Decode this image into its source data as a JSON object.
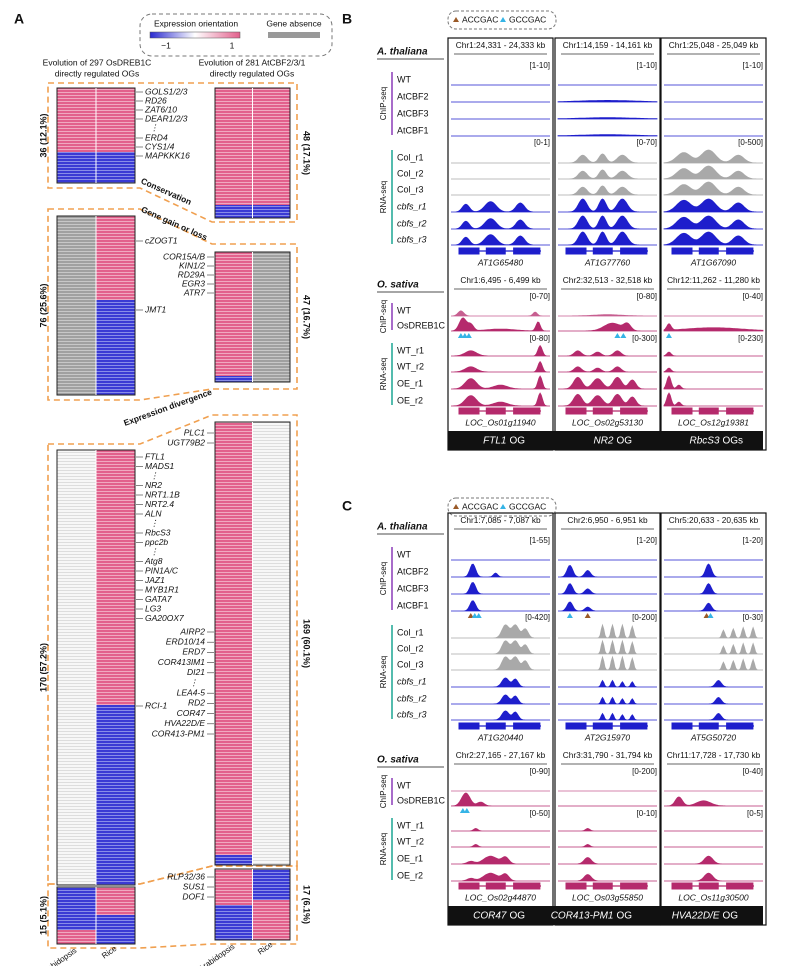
{
  "panel_a": {
    "label": "A",
    "legend": {
      "expression": "Expression orientation",
      "absence": "Gene absence",
      "min": "−1",
      "max": "1"
    },
    "left_title": [
      "Evolution of 297 OsDREB1C",
      "directly regulated OGs"
    ],
    "right_title": [
      "Evolution of 281 AtCBF2/3/1",
      "directly regulated OGs"
    ],
    "groups": [
      {
        "name": "Conservation",
        "left_count": "36 (12.1%)",
        "right_count": "48 (17.1%)",
        "left_genes": [
          "GOLS1/2/3",
          "RD26",
          "ZAT6/10",
          "DEAR1/2/3",
          "⋮",
          "ERD4",
          "CYS1/4",
          "MAPKKK16"
        ],
        "right_genes": []
      },
      {
        "name": "Gene gain or loss",
        "left_count": "76 (25.6%)",
        "right_count": "47 (16.7%)",
        "left_genes": [
          "cZOGT1",
          "JMT1"
        ],
        "right_genes": [
          "COR15A/B",
          "KIN1/2",
          "RD29A",
          "EGR3",
          "ATR7"
        ]
      },
      {
        "name": "Expression divergence",
        "left_count": "170 (57.2%)",
        "right_count": "169 (60.1%)",
        "left_genes": [
          "FTL1",
          "MADS1",
          "⋮",
          "NR2",
          "NRT1.1B",
          "NRT2.4",
          "ALN",
          "⋮",
          "RbcS3",
          "ppc2b",
          "⋮",
          "Atg8",
          "PIN1A/C",
          "JAZ1",
          "MYB1R1",
          "GATA7",
          "LG3",
          "GA20OX7",
          "RCI-1"
        ],
        "right_genes": [
          "PLC1",
          "UGT79B2",
          "AIRP2",
          "ERD10/14",
          "ERD7",
          "COR413IM1",
          "DI21",
          "⋮",
          "LEA4-5",
          "RD2",
          "COR47",
          "HVA22D/E",
          "COR413-PM1"
        ]
      },
      {
        "left_count": "15 (5.1%)",
        "right_count": "17 (6.1%)",
        "left_genes": [],
        "right_genes": [
          "RLP32/36",
          "SUS1",
          "DOF1"
        ]
      }
    ],
    "x_labels": [
      "Arabidopsis",
      "Rice"
    ]
  },
  "panel_b": {
    "label": "B",
    "motifs": [
      "ACCGAC",
      "GCCGAC"
    ],
    "chip_label": "ChIP-seq",
    "rna_label": "RNA-seq",
    "species": [
      {
        "name": "A. thaliana",
        "chip_tracks": [
          "WT",
          "AtCBF2",
          "AtCBF3",
          "AtCBF1"
        ],
        "rna_tracks": [
          "Col_r1",
          "Col_r2",
          "Col_r3",
          "cbfs_r1",
          "cbfs_r2",
          "cbfs_r3"
        ],
        "loci": [
          {
            "coords": "Chr1:24,331 - 24,333 kb",
            "chip_range": "[1-10]",
            "rna_range": "[0-1]",
            "gene": "AT1G65480"
          },
          {
            "coords": "Chr1:14,159 - 14,161 kb",
            "chip_range": "[1-10]",
            "rna_range": "[0-70]",
            "gene": "AT1G77760"
          },
          {
            "coords": "Chr1:25,048 - 25,049 kb",
            "chip_range": "[1-10]",
            "rna_range": "[0-500]",
            "gene": "AT1G67090"
          }
        ]
      },
      {
        "name": "O. sativa",
        "chip_tracks": [
          "WT",
          "OsDREB1C"
        ],
        "rna_tracks": [
          "WT_r1",
          "WT_r2",
          "OE_r1",
          "OE_r2"
        ],
        "loci": [
          {
            "coords": "Chr1:6,495 - 6,499 kb",
            "chip_range": "[0-70]",
            "rna_range": "[0-80]",
            "gene": "LOC_Os01g11940"
          },
          {
            "coords": "Chr2:32,513 - 32,518 kb",
            "chip_range": "[0-80]",
            "rna_range": "[0-300]",
            "gene": "LOC_Os02g53130"
          },
          {
            "coords": "Chr12:11,262 - 11,280 kb",
            "chip_range": "[0-40]",
            "rna_range": "[0-230]",
            "gene": "LOC_Os12g19381"
          }
        ]
      }
    ],
    "footer": [
      {
        "gene": "FTL1",
        "suffix": "OG"
      },
      {
        "gene": "NR2",
        "suffix": "OG"
      },
      {
        "gene": "RbcS3",
        "suffix": "OGs"
      }
    ]
  },
  "panel_c": {
    "label": "C",
    "motifs": [
      "ACCGAC",
      "GCCGAC"
    ],
    "chip_label": "ChIP-seq",
    "rna_label": "RNA-seq",
    "species": [
      {
        "name": "A. thaliana",
        "chip_tracks": [
          "WT",
          "AtCBF2",
          "AtCBF3",
          "AtCBF1"
        ],
        "rna_tracks": [
          "Col_r1",
          "Col_r2",
          "Col_r3",
          "cbfs_r1",
          "cbfs_r2",
          "cbfs_r3"
        ],
        "loci": [
          {
            "coords": "Chr1:7,085 - 7,087 kb",
            "chip_range": "[1-55]",
            "rna_range": "[0-420]",
            "gene": "AT1G20440"
          },
          {
            "coords": "Chr2:6,950 - 6,951 kb",
            "chip_range": "[1-20]",
            "rna_range": "[0-200]",
            "gene": "AT2G15970"
          },
          {
            "coords": "Chr5:20,633 - 20,635 kb",
            "chip_range": "[1-20]",
            "rna_range": "[0-30]",
            "gene": "AT5G50720"
          }
        ]
      },
      {
        "name": "O. sativa",
        "chip_tracks": [
          "WT",
          "OsDREB1C"
        ],
        "rna_tracks": [
          "WT_r1",
          "WT_r2",
          "OE_r1",
          "OE_r2"
        ],
        "loci": [
          {
            "coords": "Chr2:27,165 - 27,167 kb",
            "chip_range": "[0-90]",
            "rna_range": "[0-50]",
            "gene": "LOC_Os02g44870"
          },
          {
            "coords": "Chr3:31,790 - 31,794 kb",
            "chip_range": "[0-200]",
            "rna_range": "[0-10]",
            "gene": "LOC_Os03g55850"
          },
          {
            "coords": "Chr11:17,728 - 17,730 kb",
            "chip_range": "[0-40]",
            "rna_range": "[0-5]",
            "gene": "LOC_Os11g30500"
          }
        ]
      }
    ],
    "footer": [
      {
        "gene": "COR47",
        "suffix": "OG"
      },
      {
        "gene": "COR413-PM1",
        "suffix": "OG"
      },
      {
        "gene": "HVA22D/E",
        "suffix": "OG"
      }
    ]
  }
}
